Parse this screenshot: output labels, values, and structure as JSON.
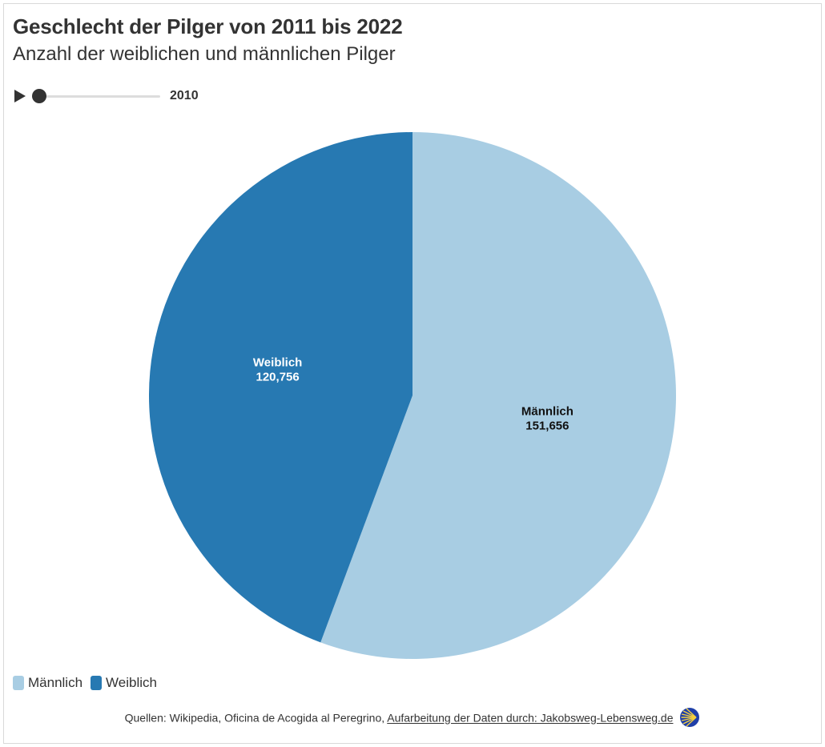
{
  "header": {
    "title": "Geschlecht der Pilger von 2011 bis 2022",
    "subtitle": "Anzahl der weiblichen und männlichen Pilger"
  },
  "timeline": {
    "current_year": "2010",
    "progress": 0
  },
  "chart_data": {
    "type": "pie",
    "title": "Geschlecht der Pilger von 2011 bis 2022",
    "subtitle": "Anzahl der weiblichen und männlichen Pilger",
    "categories": [
      "Männlich",
      "Weiblich"
    ],
    "values": [
      151656,
      120756
    ],
    "value_labels": [
      "151,656",
      "120,756"
    ],
    "colors": [
      "#a8cde3",
      "#2779b2"
    ],
    "label_colors": [
      "#111111",
      "#ffffff"
    ],
    "start": "12 o'clock",
    "direction": "clockwise",
    "legend_placement": "bottom-left"
  },
  "legend": {
    "items": [
      {
        "label": "Männlich",
        "color": "#a8cde3"
      },
      {
        "label": "Weiblich",
        "color": "#2779b2"
      }
    ]
  },
  "footer": {
    "prefix": "Quellen: Wikipedia, Oficina de Acogida al Peregrino,",
    "link_text": "Aufarbeitung der Daten durch: Jakobsweg-Lebensweg.de",
    "logo_icon": "scallop-shell-logo-icon"
  }
}
